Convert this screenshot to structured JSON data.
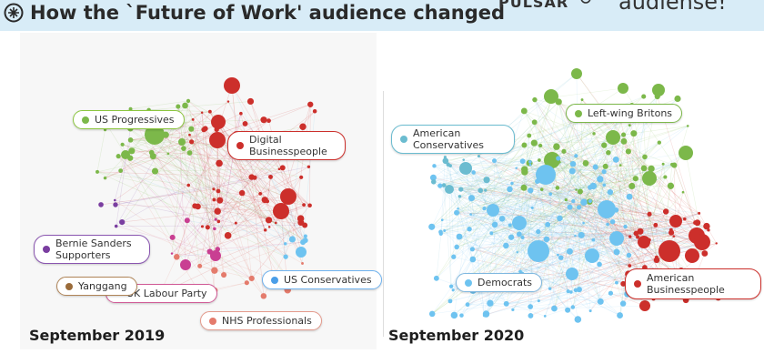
{
  "header": {
    "title": "How the `Future of Work' audience changed",
    "logos": [
      "PULSAR",
      "audiense!"
    ]
  },
  "colors": {
    "header_bg": "#d8ecf7",
    "green": "#7cb84a",
    "red": "#cc2f2b",
    "blue": "#6ec3f0",
    "purple": "#7a3ea0",
    "magenta": "#c93f92",
    "brown": "#9a6b3a",
    "salmon": "#e47b6c",
    "teal": "#6bbcd0"
  },
  "left_panel": {
    "caption": "September 2019",
    "clusters": [
      {
        "label": "US Progressives",
        "color": "#7cb84a",
        "border": "#8cc63f"
      },
      {
        "label": "Digital Businesspeople",
        "color": "#cc2f2b",
        "border": "#cc2f2b"
      },
      {
        "label": "Bernie Sanders Supporters",
        "color": "#7a3ea0",
        "border": "#8a56b0"
      },
      {
        "label": "Yanggang",
        "color": "#9a6b3a",
        "border": "#b08558"
      },
      {
        "label": "UK Labour Party",
        "color": "#c93f92",
        "border": "#d05a96"
      },
      {
        "label": "US Conservatives",
        "color": "#4a9ee8",
        "border": "#6fb2ee"
      },
      {
        "label": "NHS Professionals",
        "color": "#e47b6c",
        "border": "#e49a8c"
      }
    ]
  },
  "right_panel": {
    "caption": "September 2020",
    "clusters": [
      {
        "label": "Left-wing Britons",
        "color": "#7cb84a",
        "border": "#7cb84a"
      },
      {
        "label": "American Conservatives",
        "color": "#6bbcd0",
        "border": "#6bbcd0"
      },
      {
        "label": "Democrats",
        "color": "#6ec3f0",
        "border": "#7fb8e0"
      },
      {
        "label": "American Businesspeople",
        "color": "#cc2f2b",
        "border": "#cc2f2b"
      }
    ]
  }
}
